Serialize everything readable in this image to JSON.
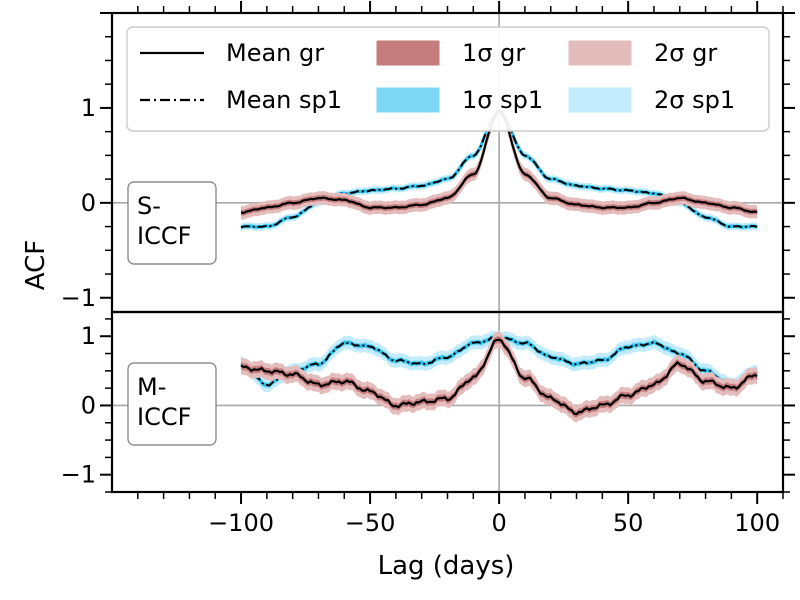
{
  "chart_data": {
    "type": "line",
    "xlabel": "Lag (days)",
    "ylabel": "ACF",
    "xlim": [
      -150,
      110
    ],
    "x_ticks": [
      -100,
      -50,
      0,
      50,
      100
    ],
    "x_tick_labels": [
      "−100",
      "−50",
      "0",
      "50",
      "100"
    ],
    "lags": [
      -100,
      -90,
      -80,
      -70,
      -60,
      -50,
      -40,
      -30,
      -20,
      -10,
      0,
      10,
      20,
      30,
      40,
      50,
      60,
      70,
      80,
      90,
      100
    ],
    "legend": [
      {
        "label": "Mean gr",
        "kind": "line-solid",
        "color": "#000000"
      },
      {
        "label": "Mean sp1",
        "kind": "line-dashdot",
        "color": "#000000"
      },
      {
        "label": "1σ gr",
        "kind": "patch",
        "color": "#c47c7c"
      },
      {
        "label": "1σ sp1",
        "kind": "patch",
        "color": "#7dd8f5"
      },
      {
        "label": "2σ gr",
        "kind": "patch",
        "color": "#e4bcbc"
      },
      {
        "label": "2σ sp1",
        "kind": "patch",
        "color": "#c2ecfb"
      }
    ],
    "colors": {
      "gr_mean": "#000000",
      "gr_1sigma": "#c47c7c",
      "gr_2sigma": "#e4bcbc",
      "sp1_line": "#29c1f0",
      "sp1_1sigma": "#7dd8f5",
      "sp1_2sigma": "#c2ecfb",
      "zero_lines": "#a8a8a8"
    },
    "panels": [
      {
        "label": "S-\nICCF",
        "ylim": [
          -1.15,
          2.0
        ],
        "y_ticks": [
          -1,
          0,
          1
        ],
        "y_tick_labels": [
          "−1",
          "0",
          "1"
        ],
        "series": [
          {
            "name": "Mean gr",
            "values": [
              -0.1,
              -0.05,
              0.0,
              0.05,
              0.03,
              -0.05,
              -0.05,
              -0.02,
              0.05,
              0.3,
              0.97,
              0.3,
              0.05,
              -0.02,
              -0.05,
              -0.05,
              0.0,
              0.05,
              0.0,
              -0.05,
              -0.1
            ],
            "sigma1": 0.03,
            "sigma2": 0.07
          },
          {
            "name": "Mean sp1",
            "values": [
              -0.25,
              -0.25,
              -0.15,
              0.0,
              0.1,
              0.13,
              0.15,
              0.18,
              0.25,
              0.5,
              0.98,
              0.5,
              0.25,
              0.18,
              0.15,
              0.13,
              0.1,
              0.0,
              -0.15,
              -0.25,
              -0.25
            ],
            "sigma1": 0.02,
            "sigma2": 0.04
          }
        ]
      },
      {
        "label": "M-\nICCF",
        "ylim": [
          -1.25,
          1.35
        ],
        "y_ticks": [
          -1,
          0,
          1
        ],
        "y_tick_labels": [
          "−1",
          "0",
          "1"
        ],
        "series": [
          {
            "name": "Mean gr",
            "values": [
              0.55,
              0.5,
              0.45,
              0.3,
              0.35,
              0.2,
              0.0,
              0.05,
              0.1,
              0.4,
              0.95,
              0.4,
              0.1,
              -0.1,
              0.0,
              0.15,
              0.3,
              0.6,
              0.35,
              0.25,
              0.45
            ],
            "sigma1": 0.05,
            "sigma2": 0.12
          },
          {
            "name": "Mean sp1",
            "values": [
              0.6,
              0.3,
              0.5,
              0.6,
              0.9,
              0.85,
              0.65,
              0.6,
              0.7,
              0.9,
              0.98,
              0.9,
              0.7,
              0.6,
              0.65,
              0.85,
              0.9,
              0.75,
              0.5,
              0.3,
              0.5
            ],
            "sigma1": 0.04,
            "sigma2": 0.1
          }
        ]
      }
    ]
  }
}
